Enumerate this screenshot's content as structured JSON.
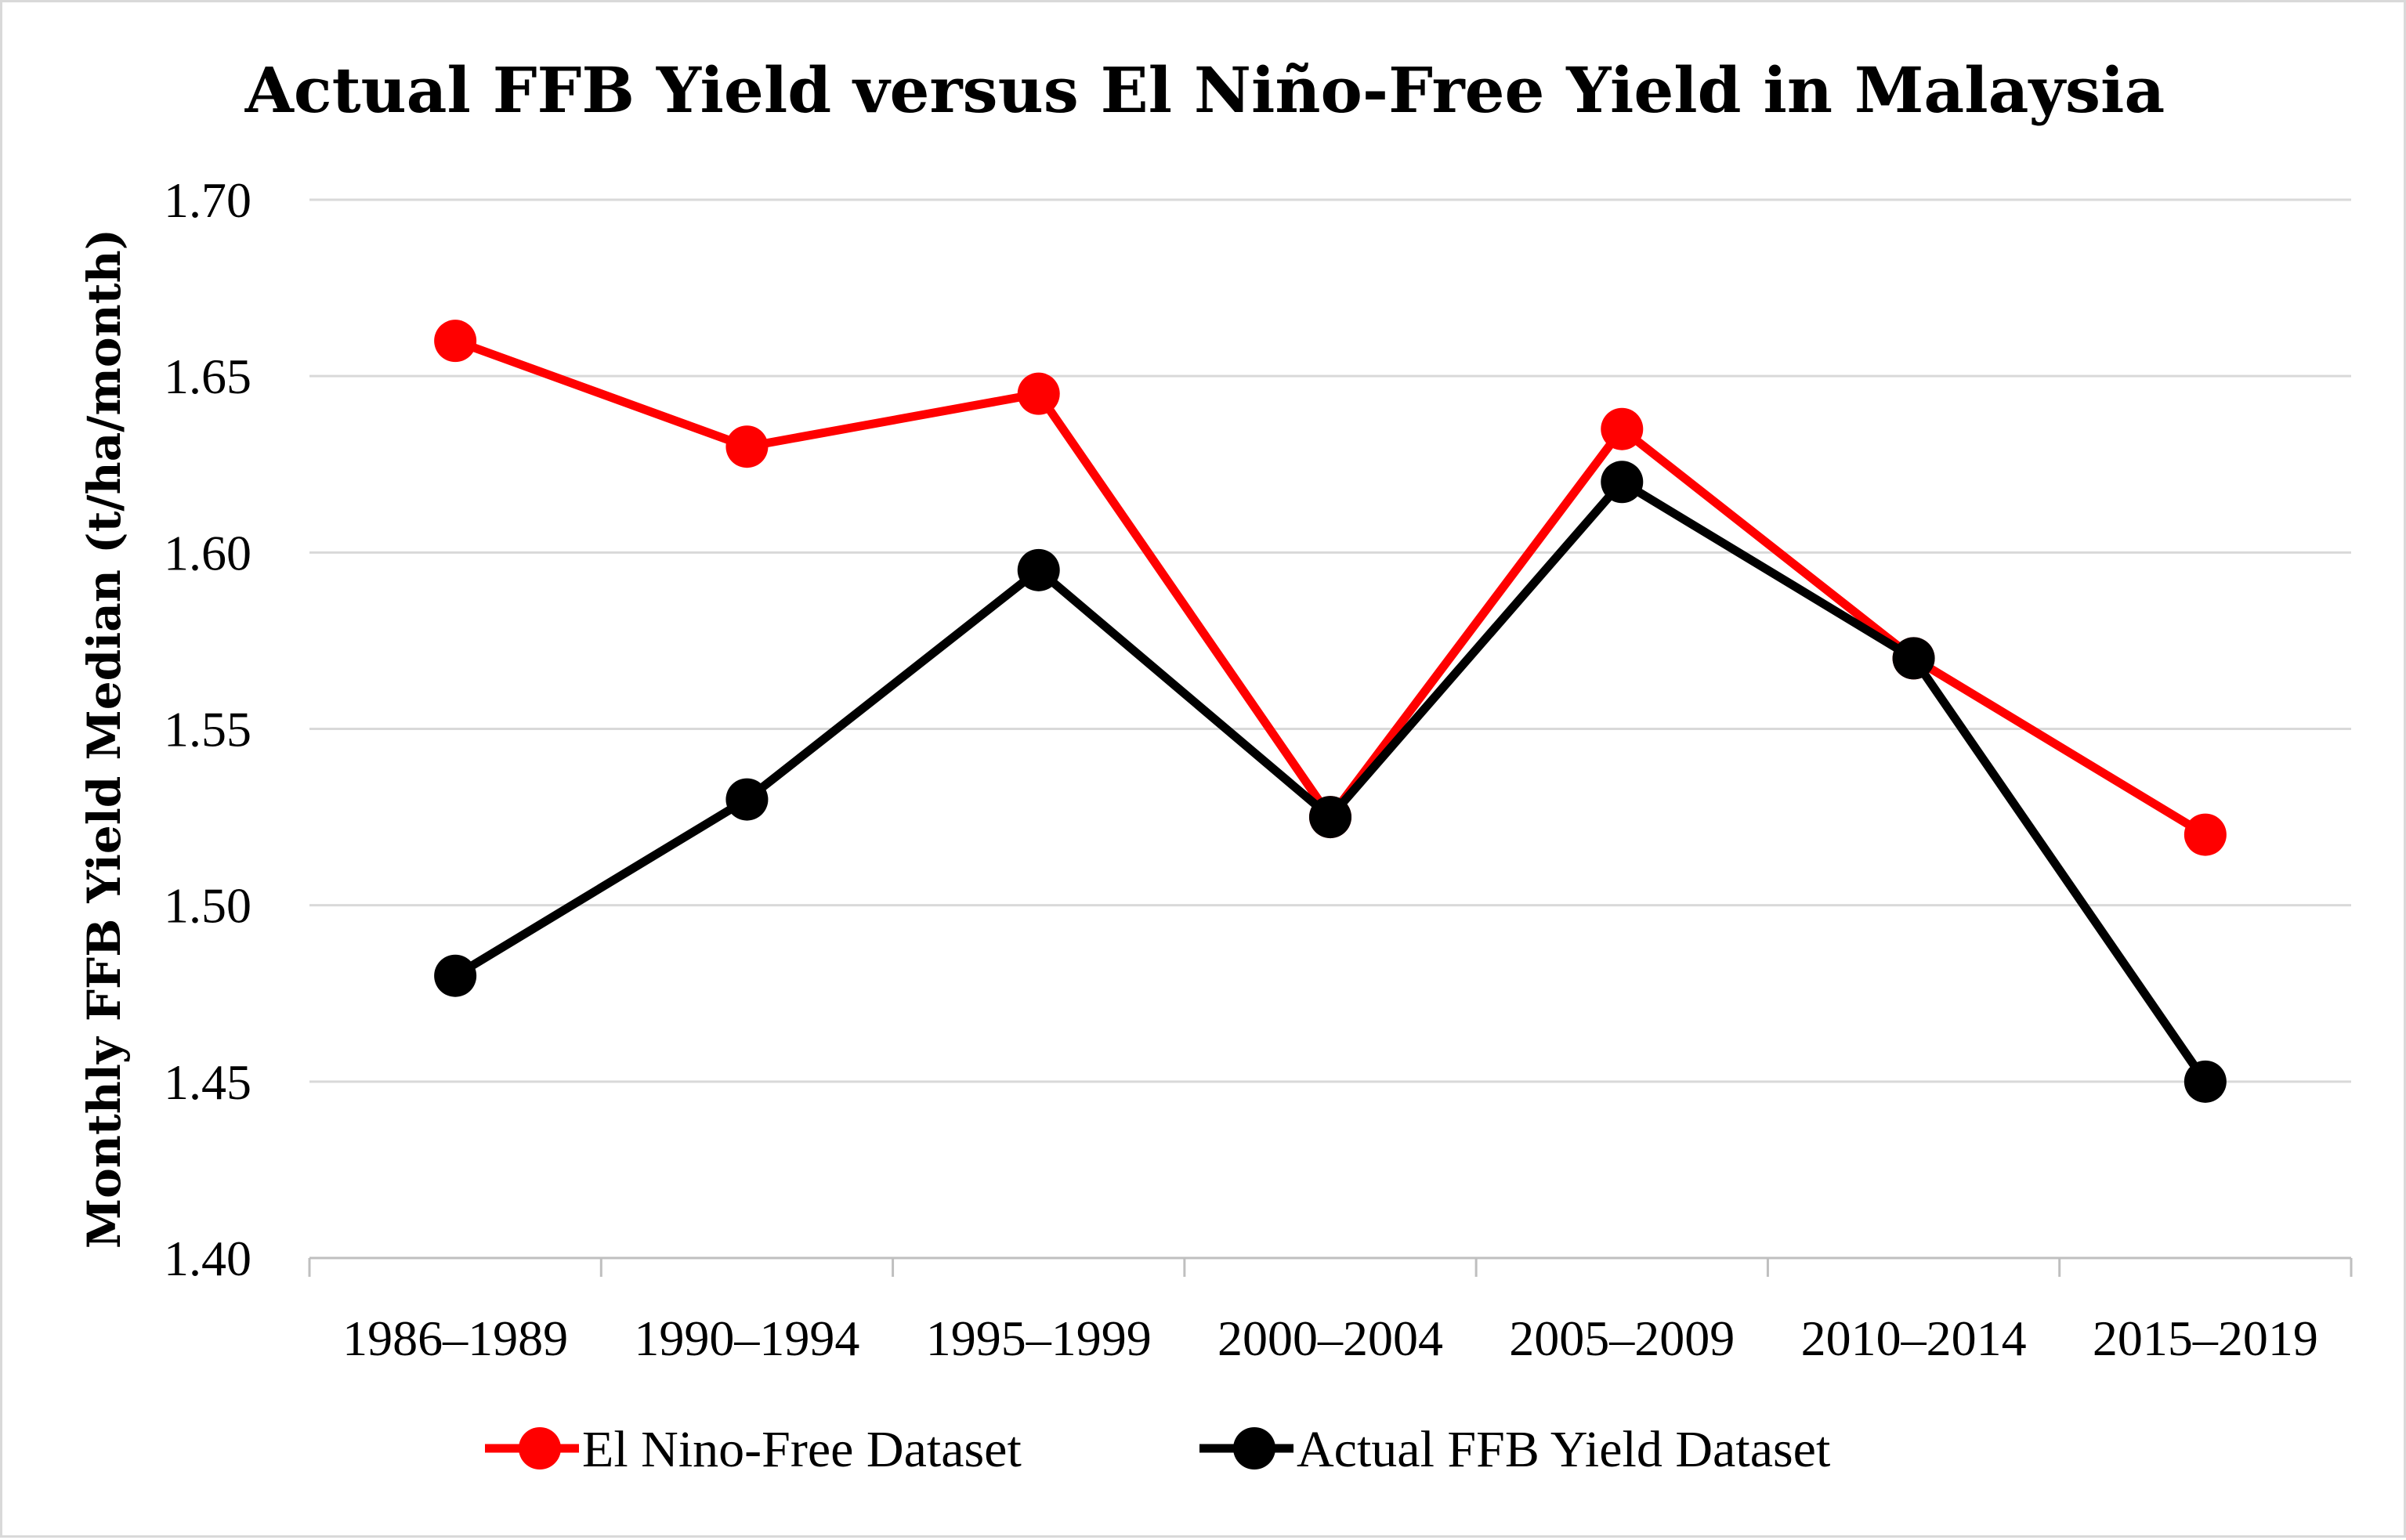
{
  "chart_data": {
    "type": "line",
    "title": "Actual FFB Yield versus El Niño-Free Yield in Malaysia",
    "xlabel": "",
    "ylabel": "Monthly FFB Yield Median (t/ha/month)",
    "ylim": [
      1.4,
      1.7
    ],
    "yticks": [
      "1.40",
      "1.45",
      "1.50",
      "1.55",
      "1.60",
      "1.65",
      "1.70"
    ],
    "ytick_values": [
      1.4,
      1.45,
      1.5,
      1.55,
      1.6,
      1.65,
      1.7
    ],
    "grid": true,
    "legend_position": "bottom",
    "categories": [
      "1986–1989",
      "1990–1994",
      "1995–1999",
      "2000–2004",
      "2005–2009",
      "2010–2014",
      "2015–2019"
    ],
    "series": [
      {
        "name": "El Nino-Free Dataset",
        "color": "#ff0000",
        "values": [
          1.66,
          1.63,
          1.645,
          1.525,
          1.635,
          1.57,
          1.52
        ]
      },
      {
        "name": "Actual FFB Yield Dataset",
        "color": "#000000",
        "values": [
          1.48,
          1.53,
          1.595,
          1.525,
          1.62,
          1.57,
          1.45
        ]
      }
    ]
  }
}
